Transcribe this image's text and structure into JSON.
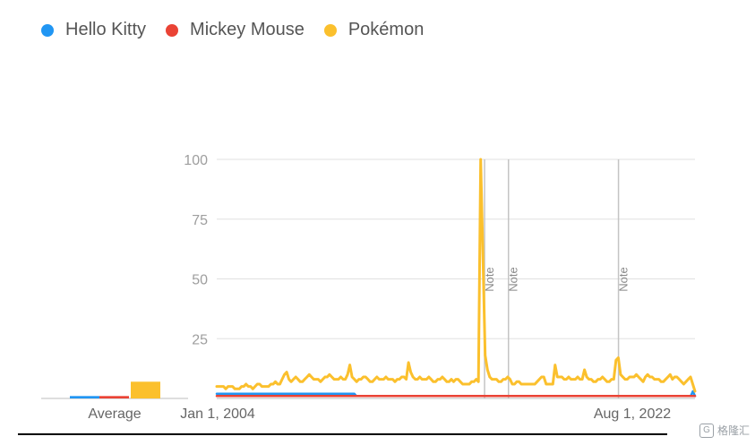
{
  "legend": {
    "items": [
      {
        "label": "Hello Kitty",
        "color": "#2196F3"
      },
      {
        "label": "Mickey Mouse",
        "color": "#EA4335"
      },
      {
        "label": "Pokémon",
        "color": "#FBC02D"
      }
    ]
  },
  "watermark": {
    "text": "格隆汇"
  },
  "chart_data": [
    {
      "type": "bar",
      "categories": [
        "Hello Kitty",
        "Mickey Mouse",
        "Pokémon"
      ],
      "values": [
        1,
        1,
        7
      ],
      "xlabel": "Average",
      "colors": [
        "#2196F3",
        "#EA4335",
        "#FBC02D"
      ]
    },
    {
      "type": "line",
      "x_tick_labels": [
        "Jan 1, 2004",
        "Aug 1, 2022"
      ],
      "yticks": [
        25,
        50,
        75,
        100
      ],
      "ylim": [
        0,
        100
      ],
      "grid": true,
      "legend_position": "top-left",
      "annotations": [
        {
          "x": 0.56,
          "label": "Note"
        },
        {
          "x": 0.61,
          "label": "Note"
        },
        {
          "x": 0.84,
          "label": "Note"
        }
      ],
      "series": [
        {
          "name": "Hello Kitty",
          "color": "#2196F3",
          "values": [
            2,
            2,
            2,
            2,
            2,
            2,
            2,
            2,
            2,
            2,
            2,
            2,
            2,
            2,
            2,
            2,
            2,
            2,
            2,
            2,
            2,
            2,
            2,
            2,
            2,
            2,
            2,
            2,
            2,
            2,
            2,
            2,
            2,
            2,
            2,
            2,
            2,
            2,
            2,
            2,
            2,
            2,
            2,
            2,
            2,
            2,
            2,
            2,
            2,
            2,
            2,
            2,
            2,
            2,
            2,
            2,
            2,
            2,
            2,
            2,
            2,
            2,
            2,
            2,
            2,
            2,
            1,
            1,
            1,
            1,
            1,
            1,
            1,
            1,
            1,
            1,
            1,
            1,
            1,
            1,
            1,
            1,
            1,
            1,
            1,
            1,
            1,
            1,
            1,
            1,
            1,
            1,
            1,
            1,
            1,
            1,
            1,
            1,
            1,
            1,
            1,
            1,
            1,
            1,
            1,
            1,
            1,
            1,
            1,
            1,
            1,
            1,
            1,
            1,
            1,
            1,
            1,
            1,
            1,
            1,
            1,
            1,
            1,
            1,
            1,
            1,
            1,
            1,
            1,
            1,
            1,
            1,
            1,
            1,
            1,
            1,
            1,
            1,
            1,
            1,
            1,
            1,
            1,
            1,
            1,
            1,
            1,
            1,
            1,
            1,
            1,
            1,
            1,
            1,
            1,
            1,
            1,
            1,
            1,
            1,
            1,
            1,
            1,
            1,
            1,
            1,
            1,
            1,
            1,
            1,
            1,
            1,
            1,
            1,
            1,
            1,
            1,
            1,
            1,
            1,
            1,
            1,
            1,
            1,
            1,
            1,
            1,
            1,
            1,
            1,
            1,
            1,
            1,
            1,
            1,
            1,
            1,
            1,
            1,
            1,
            1,
            1,
            1,
            1,
            1,
            1,
            1,
            1,
            1,
            1,
            1,
            1,
            1,
            1,
            1,
            1,
            1,
            1,
            1,
            1,
            1,
            1,
            1,
            1,
            1,
            3,
            1
          ]
        },
        {
          "name": "Mickey Mouse",
          "color": "#EA4335",
          "values": [
            1,
            1,
            1,
            1,
            1,
            1,
            1,
            1,
            1,
            1,
            1,
            1,
            1,
            1,
            1,
            1,
            1,
            1,
            1,
            1,
            1,
            1,
            1,
            1,
            1,
            1,
            1,
            1,
            1,
            1,
            1,
            1,
            1,
            1,
            1,
            1,
            1,
            1,
            1,
            1,
            1,
            1,
            1,
            1,
            1,
            1,
            1,
            1,
            1,
            1,
            1,
            1,
            1,
            1,
            1,
            1,
            1,
            1,
            1,
            1,
            1,
            1,
            1,
            1,
            1,
            1,
            1,
            1,
            1,
            1,
            1,
            1,
            1,
            1,
            1,
            1,
            1,
            1,
            1,
            1,
            1,
            1,
            1,
            1,
            1,
            1,
            1,
            1,
            1,
            1,
            1,
            1,
            1,
            1,
            1,
            1,
            1,
            1,
            1,
            1,
            1,
            1,
            1,
            1,
            1,
            1,
            1,
            1,
            1,
            1,
            1,
            1,
            1,
            1,
            1,
            1,
            1,
            1,
            1,
            1,
            1,
            1,
            1,
            1,
            1,
            1,
            1,
            1,
            1,
            1,
            1,
            1,
            1,
            1,
            1,
            1,
            1,
            1,
            1,
            1,
            1,
            1,
            1,
            1,
            1,
            1,
            1,
            1,
            1,
            1,
            1,
            1,
            1,
            1,
            1,
            1,
            1,
            1,
            1,
            1,
            1,
            1,
            1,
            1,
            1,
            1,
            1,
            1,
            1,
            1,
            1,
            1,
            1,
            1,
            1,
            1,
            1,
            1,
            1,
            1,
            1,
            1,
            1,
            1,
            1,
            1,
            1,
            1,
            1,
            1,
            1,
            1,
            1,
            1,
            1,
            1,
            1,
            1,
            1,
            1,
            1,
            1,
            1,
            1,
            1,
            1,
            1,
            1,
            1,
            1,
            1,
            1,
            1,
            1,
            1,
            1,
            1,
            1,
            1,
            1,
            1,
            1,
            1,
            1,
            1,
            1,
            1
          ]
        },
        {
          "name": "Pokémon",
          "color": "#FBC02D",
          "values": [
            5,
            5,
            5,
            5,
            4,
            5,
            5,
            5,
            4,
            4,
            4,
            5,
            5,
            6,
            5,
            5,
            4,
            5,
            6,
            6,
            5,
            5,
            5,
            5,
            6,
            6,
            7,
            6,
            6,
            8,
            10,
            11,
            8,
            7,
            8,
            9,
            8,
            7,
            7,
            8,
            9,
            10,
            9,
            8,
            8,
            8,
            7,
            8,
            9,
            9,
            10,
            9,
            8,
            8,
            8,
            9,
            8,
            8,
            10,
            14,
            9,
            8,
            7,
            8,
            8,
            9,
            9,
            8,
            7,
            7,
            8,
            9,
            8,
            8,
            8,
            9,
            8,
            8,
            8,
            7,
            8,
            8,
            9,
            9,
            8,
            15,
            11,
            9,
            8,
            8,
            9,
            8,
            8,
            8,
            9,
            8,
            7,
            7,
            8,
            8,
            9,
            8,
            7,
            7,
            8,
            7,
            8,
            8,
            7,
            6,
            6,
            6,
            6,
            7,
            7,
            8,
            7,
            100,
            60,
            18,
            12,
            9,
            8,
            8,
            8,
            7,
            7,
            8,
            8,
            9,
            8,
            6,
            6,
            7,
            7,
            6,
            6,
            6,
            6,
            6,
            6,
            6,
            7,
            8,
            9,
            9,
            6,
            6,
            6,
            6,
            14,
            9,
            9,
            9,
            8,
            8,
            9,
            8,
            8,
            8,
            9,
            8,
            8,
            12,
            9,
            8,
            8,
            7,
            7,
            8,
            8,
            9,
            8,
            7,
            7,
            8,
            8,
            16,
            17,
            10,
            9,
            8,
            8,
            9,
            9,
            9,
            10,
            9,
            8,
            7,
            9,
            10,
            9,
            9,
            8,
            8,
            8,
            7,
            7,
            8,
            9,
            10,
            8,
            9,
            9,
            8,
            7,
            6,
            7,
            8,
            9,
            6,
            3
          ]
        }
      ]
    }
  ]
}
